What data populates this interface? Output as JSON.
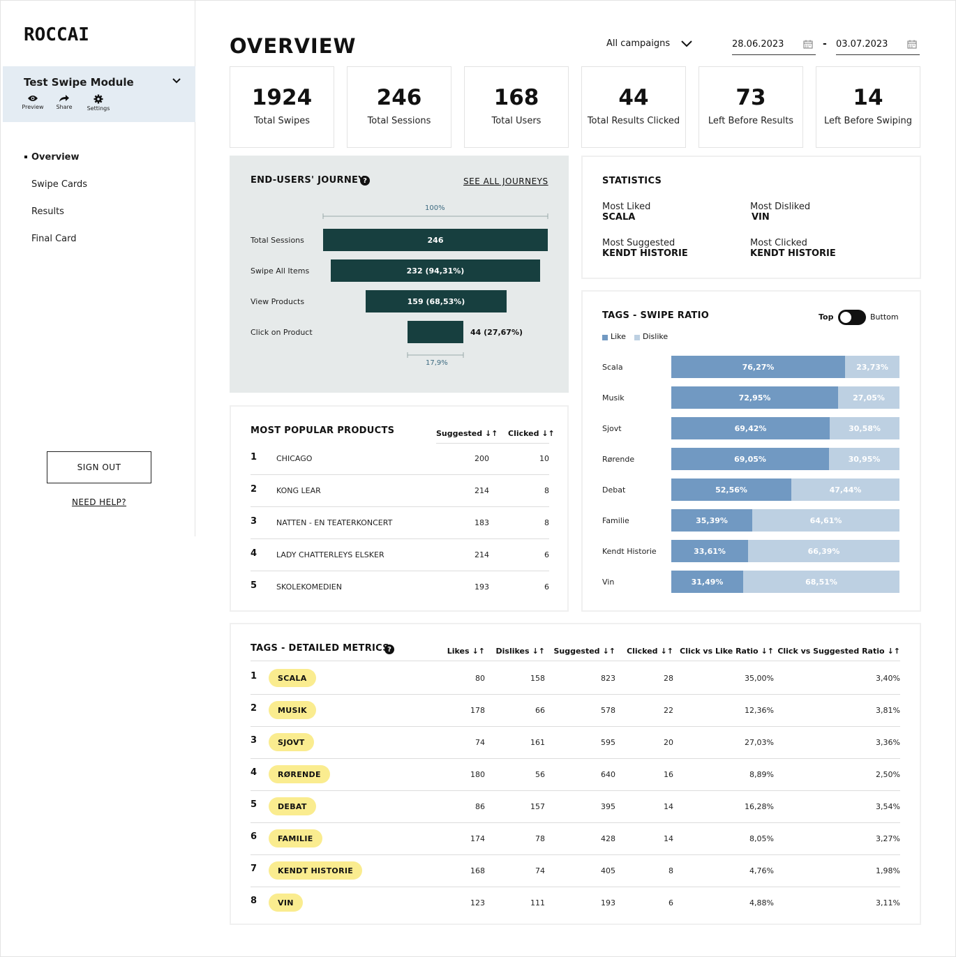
{
  "brand": {
    "logo": "RОCCAI"
  },
  "module": {
    "title": "Test Swipe Module",
    "actions": [
      {
        "label": "Preview",
        "icon": "eye-icon"
      },
      {
        "label": "Share",
        "icon": "share-icon"
      },
      {
        "label": "Settings",
        "icon": "gear-icon"
      }
    ]
  },
  "nav": [
    "Overview",
    "Swipe Cards",
    "Results",
    "Final Card"
  ],
  "sidebar_footer": {
    "signout": "SIGN OUT",
    "help": "NEED HELP?"
  },
  "header": {
    "title": "OVERVIEW",
    "campaign": "All campaigns",
    "date_from": "28.06.2023",
    "date_to": "03.07.2023",
    "date_sep": "-"
  },
  "kpis": [
    {
      "value": "1924",
      "label": "Total Swipes"
    },
    {
      "value": "246",
      "label": "Total Sessions"
    },
    {
      "value": "168",
      "label": "Total Users"
    },
    {
      "value": "44",
      "label": "Total Results Clicked"
    },
    {
      "value": "73",
      "label": "Left Before Results"
    },
    {
      "value": "14",
      "label": "Left Before Swiping"
    }
  ],
  "journey": {
    "title": "END-USERS' JOURNEY",
    "link": "SEE ALL JOURNEYS",
    "top_pct": "100%",
    "bottom_pct": "17,9%",
    "steps": [
      {
        "label": "Total Sessions",
        "value": 246,
        "text": "246"
      },
      {
        "label": "Swipe All Items",
        "value": 232,
        "text": "232 (94,31%)"
      },
      {
        "label": "View Products",
        "value": 159,
        "text": "159 (68,53%)"
      },
      {
        "label": "Click on Product",
        "value": 44,
        "text": "44 (27,67%)"
      }
    ]
  },
  "statistics": {
    "title": "STATISTICS",
    "most_liked_label": "Most Liked",
    "most_liked": "SCALA",
    "most_disliked_label": "Most Disliked",
    "most_disliked": "VIN",
    "most_suggested_label": "Most Suggested",
    "most_suggested": "KENDT HISTORIE",
    "most_clicked_label": "Most Clicked",
    "most_clicked": "KENDT HISTORIE"
  },
  "swipe_ratio": {
    "title": "TAGS - SWIPE RATIO",
    "toggle_left": "Top",
    "toggle_right": "Buttom",
    "legend_like": "Like",
    "legend_dislike": "Dislike",
    "colors": {
      "like": "#7199c2",
      "dislike": "#bdd0e2"
    },
    "rows": [
      {
        "tag": "Scala",
        "like": 76.27,
        "like_text": "76,27%",
        "dislike_text": "23,73%"
      },
      {
        "tag": "Musik",
        "like": 72.95,
        "like_text": "72,95%",
        "dislike_text": "27,05%"
      },
      {
        "tag": "Sjovt",
        "like": 69.42,
        "like_text": "69,42%",
        "dislike_text": "30,58%"
      },
      {
        "tag": "Rørende",
        "like": 69.05,
        "like_text": "69,05%",
        "dislike_text": "30,95%"
      },
      {
        "tag": "Debat",
        "like": 52.56,
        "like_text": "52,56%",
        "dislike_text": "47,44%"
      },
      {
        "tag": "Familie",
        "like": 35.39,
        "like_text": "35,39%",
        "dislike_text": "64,61%"
      },
      {
        "tag": "Kendt Historie",
        "like": 33.61,
        "like_text": "33,61%",
        "dislike_text": "66,39%"
      },
      {
        "tag": "Vin",
        "like": 31.49,
        "like_text": "31,49%",
        "dislike_text": "68,51%"
      }
    ]
  },
  "popular": {
    "title": "MOST POPULAR PRODUCTS",
    "col_suggested": "Suggested",
    "col_clicked": "Clicked",
    "rows": [
      {
        "rank": "1",
        "name": "CHICAGO",
        "suggested": "200",
        "clicked": "10"
      },
      {
        "rank": "2",
        "name": "KONG LEAR",
        "suggested": "214",
        "clicked": "8"
      },
      {
        "rank": "3",
        "name": "NATTEN - EN TEATERKONCERT",
        "suggested": "183",
        "clicked": "8"
      },
      {
        "rank": "4",
        "name": "LADY CHATTERLEYS ELSKER",
        "suggested": "214",
        "clicked": "6"
      },
      {
        "rank": "5",
        "name": "SKOLEKOMEDIEN",
        "suggested": "193",
        "clicked": "6"
      }
    ]
  },
  "metrics": {
    "title": "TAGS - DETAILED METRICS",
    "columns": [
      "Likes",
      "Dislikes",
      "Suggested",
      "Clicked",
      "Click vs Like Ratio",
      "Click vs Suggested Ratio"
    ],
    "rows": [
      {
        "rank": "1",
        "tag": "SCALA",
        "likes": "80",
        "dislikes": "158",
        "suggested": "823",
        "clicked": "28",
        "cl": "35,00%",
        "cs": "3,40%"
      },
      {
        "rank": "2",
        "tag": "MUSIK",
        "likes": "178",
        "dislikes": "66",
        "suggested": "578",
        "clicked": "22",
        "cl": "12,36%",
        "cs": "3,81%"
      },
      {
        "rank": "3",
        "tag": "SJOVT",
        "likes": "74",
        "dislikes": "161",
        "suggested": "595",
        "clicked": "20",
        "cl": "27,03%",
        "cs": "3,36%"
      },
      {
        "rank": "4",
        "tag": "RØRENDE",
        "likes": "180",
        "dislikes": "56",
        "suggested": "640",
        "clicked": "16",
        "cl": "8,89%",
        "cs": "2,50%"
      },
      {
        "rank": "5",
        "tag": "DEBAT",
        "likes": "86",
        "dislikes": "157",
        "suggested": "395",
        "clicked": "14",
        "cl": "16,28%",
        "cs": "3,54%"
      },
      {
        "rank": "6",
        "tag": "FAMILIE",
        "likes": "174",
        "dislikes": "78",
        "suggested": "428",
        "clicked": "14",
        "cl": "8,05%",
        "cs": "3,27%"
      },
      {
        "rank": "7",
        "tag": "KENDT HISTORIE",
        "likes": "168",
        "dislikes": "74",
        "suggested": "405",
        "clicked": "8",
        "cl": "4,76%",
        "cs": "1,98%"
      },
      {
        "rank": "8",
        "tag": "VIN",
        "likes": "123",
        "dislikes": "111",
        "suggested": "193",
        "clicked": "6",
        "cl": "4,88%",
        "cs": "3,11%"
      }
    ]
  }
}
